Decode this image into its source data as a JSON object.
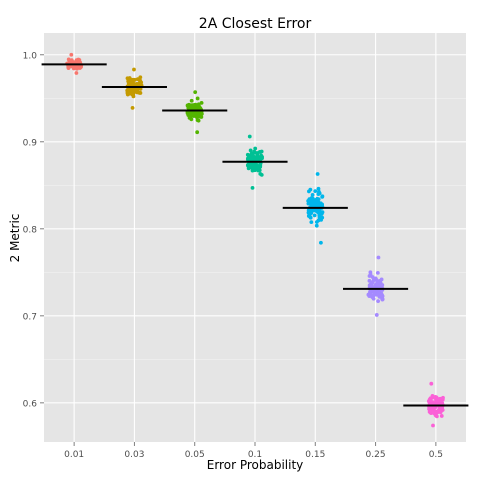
{
  "chart_data": {
    "type": "scatter",
    "subtype": "jittered strip plot with mean bars",
    "title": "2A Closest Error",
    "xlabel": "Error Probability",
    "ylabel": "2 Metric",
    "categories": [
      "0.01",
      "0.03",
      "0.05",
      "0.1",
      "0.15",
      "0.25",
      "0.5"
    ],
    "ylim": [
      0.555,
      1.025
    ],
    "yticks": [
      0.6,
      0.7,
      0.8,
      0.9,
      1.0
    ],
    "ytick_labels": [
      "0.6",
      "0.7",
      "0.8",
      "0.9",
      "1.0"
    ],
    "grid": true,
    "legend": "none",
    "series": [
      {
        "category": "0.01",
        "color": "#F8766D",
        "mean": 0.989,
        "min": 0.979,
        "max": 1.0
      },
      {
        "category": "0.03",
        "color": "#C49A00",
        "mean": 0.963,
        "min": 0.939,
        "max": 0.983
      },
      {
        "category": "0.05",
        "color": "#53B400",
        "mean": 0.936,
        "min": 0.911,
        "max": 0.957
      },
      {
        "category": "0.1",
        "color": "#00C094",
        "mean": 0.877,
        "min": 0.847,
        "max": 0.906
      },
      {
        "category": "0.15",
        "color": "#00B6EB",
        "mean": 0.824,
        "min": 0.784,
        "max": 0.863
      },
      {
        "category": "0.25",
        "color": "#A58AFF",
        "mean": 0.731,
        "min": 0.701,
        "max": 0.767
      },
      {
        "category": "0.5",
        "color": "#FB61D7",
        "mean": 0.597,
        "min": 0.574,
        "max": 0.622
      }
    ],
    "points_per_category": 100,
    "style": {
      "panel_bg": "#E5E5E5",
      "grid_major": "#FFFFFF",
      "grid_minor": "#F2F2F2",
      "mean_bar": "#000000",
      "axis_text": "#4D4D4D"
    }
  }
}
